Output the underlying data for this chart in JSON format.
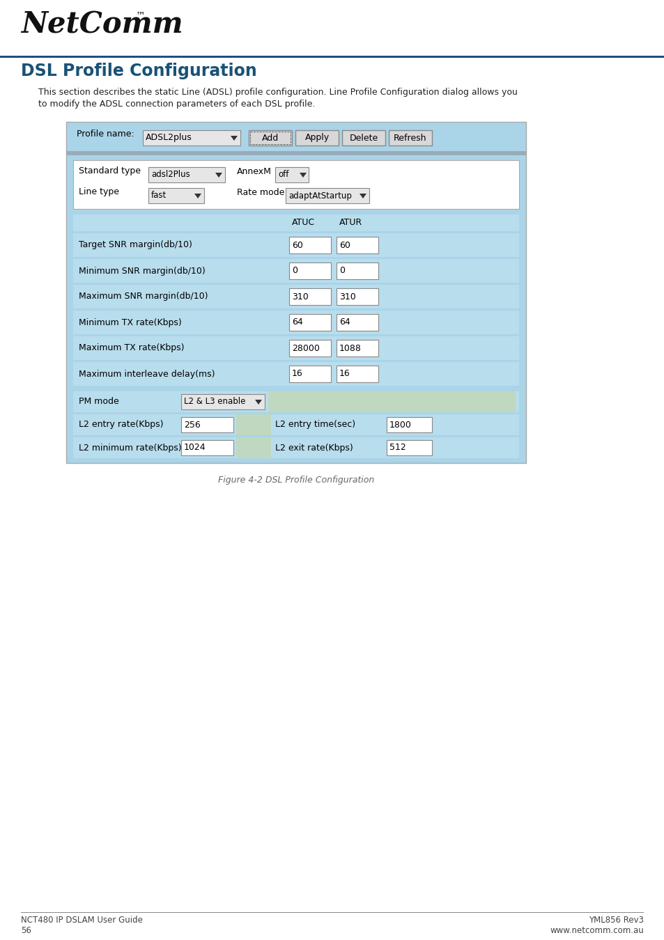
{
  "title": "DSL Profile Configuration",
  "desc1": "This section describes the static Line (ADSL) profile configuration. Line Profile Configuration dialog allows you",
  "desc2": "to modify the ADSL connection parameters of each DSL profile.",
  "figure_caption": "Figure 4-2 DSL Profile Configuration",
  "title_color": "#1a5276",
  "bg_color": "#ffffff",
  "panel_bg": "#aad4e8",
  "inner_bg": "#b8dded",
  "row_bg": "#b8dded",
  "white": "#ffffff",
  "light_gray": "#e0e0e0",
  "light_green_gray": "#c8d8c8",
  "separator_color": "#888888",
  "profile_name_label": "Profile name:",
  "profile_name_value": "ADSL2plus",
  "buttons": [
    "Add",
    "Apply",
    "Delete",
    "Refresh"
  ],
  "standard_type_label": "Standard type",
  "standard_type_value": "adsl2Plus",
  "annex_label": "AnnexM",
  "annex_value": "off",
  "line_type_label": "Line type",
  "line_type_value": "fast",
  "rate_mode_label": "Rate mode",
  "rate_mode_value": "adaptAtStartup",
  "col_headers": [
    "ATUC",
    "ATUR"
  ],
  "row_labels": [
    "Target SNR margin(db/10)",
    "Minimum SNR margin(db/10)",
    "Maximum SNR margin(db/10)",
    "Minimum TX rate(Kbps)",
    "Maximum TX rate(Kbps)",
    "Maximum interleave delay(ms)"
  ],
  "atuc_values": [
    "60",
    "0",
    "310",
    "64",
    "28000",
    "16"
  ],
  "atur_values": [
    "60",
    "0",
    "310",
    "64",
    "1088",
    "16"
  ],
  "pm_mode_label": "PM mode",
  "pm_mode_value": "L2 & L3 enable",
  "l2_entry_rate_label": "L2 entry rate(Kbps)",
  "l2_entry_rate_value": "256",
  "l2_entry_time_label": "L2 entry time(sec)",
  "l2_entry_time_value": "1800",
  "l2_min_rate_label": "L2 minimum rate(Kbps)",
  "l2_min_rate_value": "1024",
  "l2_exit_rate_label": "L2 exit rate(Kbps)",
  "l2_exit_rate_value": "512",
  "footer_left1": "NCT480 IP DSLAM User Guide",
  "footer_left2": "56",
  "footer_right1": "YML856 Rev3",
  "footer_right2": "www.netcomm.com.au"
}
